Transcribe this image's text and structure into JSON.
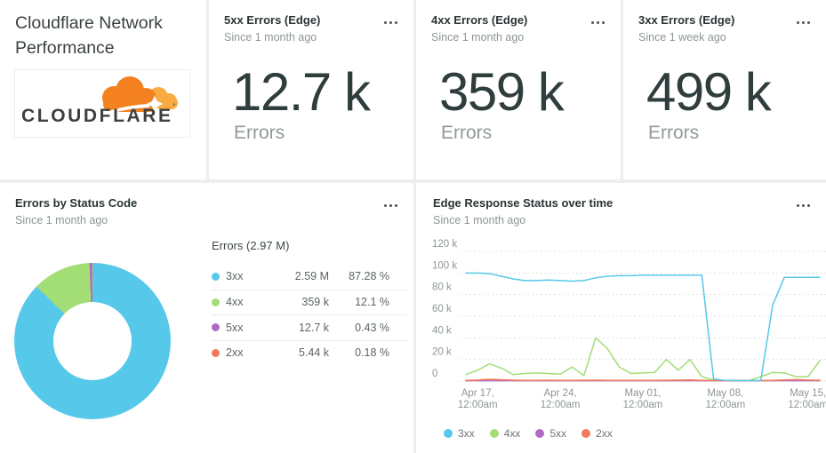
{
  "colors": {
    "s3xx": "#56c8ea",
    "s4xx": "#a3dd76",
    "s5xx": "#af6cc4",
    "s2xx": "#f2795b",
    "grid_line": "#dfe3e2",
    "axis_text": "#8e9697",
    "card_bg": "#ffffff",
    "page_bg": "#ecefee",
    "cloudflare_orange": "#f48120",
    "cloudflare_light_orange": "#f9ab41"
  },
  "header_card": {
    "title": "Cloudflare Network Performance",
    "logo_text": "CLOUDFLARE",
    "logo_mark": "’",
    "logo_icon": "cloudflare-cloud"
  },
  "stat_cards": [
    {
      "title": "5xx Errors (Edge)",
      "subtitle": "Since 1 month ago",
      "value": "12.7 k",
      "label": "Errors",
      "menu_icon": "ellipsis"
    },
    {
      "title": "4xx Errors (Edge)",
      "subtitle": "Since 1 month ago",
      "value": "359 k",
      "label": "Errors",
      "menu_icon": "ellipsis"
    },
    {
      "title": "3xx Errors (Edge)",
      "subtitle": "Since 1 week ago",
      "value": "499 k",
      "label": "Errors",
      "menu_icon": "ellipsis"
    }
  ],
  "donut_card": {
    "title": "Errors by Status Code",
    "subtitle": "Since 1 month ago",
    "menu_icon": "ellipsis",
    "chart_data": {
      "type": "pie",
      "total_label": "Errors (2.97 M)",
      "legend_position": "right",
      "slices": [
        {
          "label": "3xx",
          "value": 2590000,
          "value_display": "2.59 M",
          "pct": 87.28,
          "pct_display": "87.28 %",
          "color": "#56c8ea"
        },
        {
          "label": "4xx",
          "value": 359000,
          "value_display": "359 k",
          "pct": 12.1,
          "pct_display": "12.1 %",
          "color": "#a3dd76"
        },
        {
          "label": "5xx",
          "value": 12700,
          "value_display": "12.7 k",
          "pct": 0.43,
          "pct_display": "0.43 %",
          "color": "#af6cc4"
        },
        {
          "label": "2xx",
          "value": 5440,
          "value_display": "5.44 k",
          "pct": 0.18,
          "pct_display": "0.18 %",
          "color": "#f2795b"
        }
      ]
    }
  },
  "line_card": {
    "title": "Edge Response Status over time",
    "subtitle": "Since 1 month ago",
    "menu_icon": "ellipsis",
    "chart_data": {
      "type": "line",
      "unit": "k (thousand errors per day)",
      "ylim": [
        0,
        120
      ],
      "grid": "dashed",
      "legend_position": "bottom",
      "x_range_days": 31,
      "y_ticks": [
        {
          "v": 120,
          "label": "120 k"
        },
        {
          "v": 100,
          "label": "100 k"
        },
        {
          "v": 80,
          "label": "80 k"
        },
        {
          "v": 60,
          "label": "60 k"
        },
        {
          "v": 40,
          "label": "40 k"
        },
        {
          "v": 20,
          "label": "20 k"
        },
        {
          "v": 0,
          "label": "0"
        }
      ],
      "x_ticks": [
        {
          "day_index": 1,
          "line1": "Apr 17,",
          "line2": "12:00am"
        },
        {
          "day_index": 8,
          "line1": "Apr 24,",
          "line2": "12:00am"
        },
        {
          "day_index": 15,
          "line1": "May 01,",
          "line2": "12:00am"
        },
        {
          "day_index": 22,
          "line1": "May 08,",
          "line2": "12:00am"
        },
        {
          "day_index": 29,
          "line1": "May 15,",
          "line2": "12:00am"
        }
      ],
      "series": [
        {
          "name": "3xx",
          "color": "#56c8ea",
          "values": [
            100,
            100,
            99.5,
            97,
            94.5,
            93,
            93,
            93.5,
            93,
            92.5,
            93,
            95.5,
            97,
            97.5,
            97.5,
            98,
            98,
            98,
            98,
            98,
            98,
            2,
            0.5,
            0.4,
            0.4,
            0.4,
            70,
            96,
            96,
            96,
            96
          ]
        },
        {
          "name": "4xx",
          "color": "#a3dd76",
          "values": [
            6,
            10,
            16,
            12,
            6,
            7,
            7.5,
            7,
            6.5,
            13,
            5,
            40,
            30,
            13,
            7,
            7.5,
            8,
            20,
            10,
            20,
            4,
            1,
            0.5,
            0.5,
            0.5,
            4,
            8,
            7.5,
            4,
            4,
            19
          ]
        },
        {
          "name": "5xx",
          "color": "#af6cc4",
          "values": [
            0.3,
            0.3,
            0.3,
            0.3,
            0.3,
            0.3,
            0.3,
            0.3,
            0.3,
            0.3,
            0.3,
            0.3,
            0.3,
            0.3,
            0.3,
            0.3,
            0.3,
            0.3,
            0.3,
            0.3,
            0.3,
            0.3,
            0.3,
            0.3,
            0.3,
            0.3,
            0.3,
            0.3,
            0.3,
            0.3,
            0.3
          ]
        },
        {
          "name": "2xx",
          "color": "#f2795b",
          "values": [
            0.6,
            0.9,
            1.6,
            1.2,
            0.8,
            0.6,
            0.6,
            0.7,
            0.6,
            0.6,
            0.7,
            0.8,
            0.6,
            0.6,
            0.6,
            0.6,
            0.6,
            0.7,
            0.8,
            1.0,
            0.6,
            0.4,
            0.3,
            0.3,
            0.3,
            0.4,
            0.6,
            1.0,
            1.3,
            0.9,
            0.7
          ]
        }
      ]
    }
  }
}
